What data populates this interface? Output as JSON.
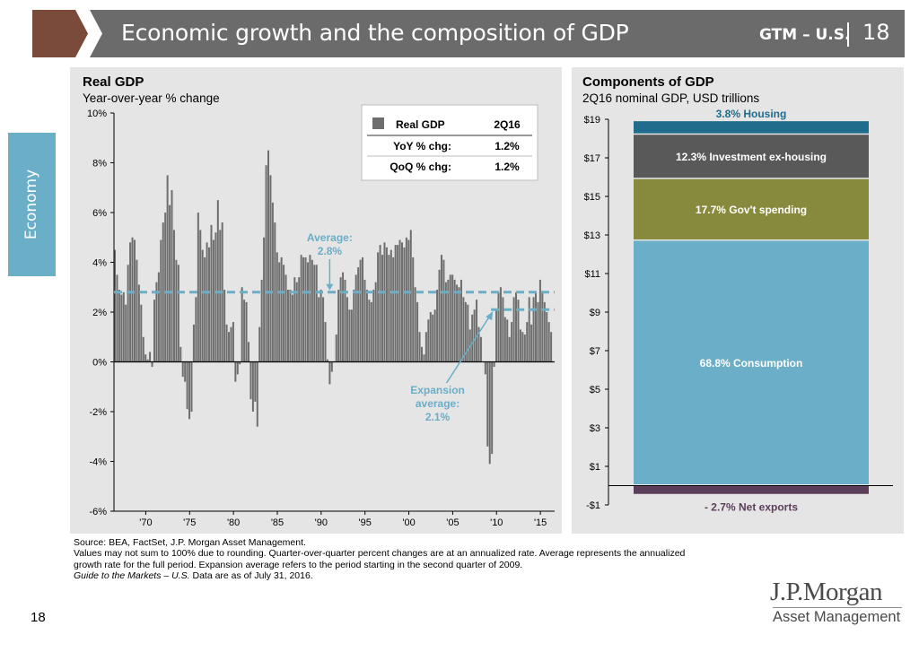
{
  "header": {
    "title": "Economic growth and the composition of GDP",
    "section": "GTM – U.S.",
    "page": "18"
  },
  "side_tab": {
    "label": "Economy"
  },
  "left_panel": {
    "title": "Real GDP",
    "subtitle": "Year-over-year % change"
  },
  "right_panel": {
    "title": "Components of GDP",
    "subtitle": "2Q16 nominal GDP, USD trillions"
  },
  "footer": {
    "source": "Source: BEA, FactSet, J.P. Morgan Asset Management.",
    "note1": "Values may not sum to 100% due to rounding. Quarter-over-quarter percent changes are at an annualized rate. Average represents the annualized",
    "note2": "growth rate for the full period. Expansion average refers to the period starting in the second quarter of 2009.",
    "note3_italic": "Guide to the Markets – U.S.",
    "note3_rest": " Data are as of July 31, 2016."
  },
  "page_number": "18",
  "logo": {
    "name": "J.P.Morgan",
    "sub": "Asset Management"
  },
  "colors": {
    "banner": "#6b6b6b",
    "banner_accent": "#7a4a3a",
    "bar": "#6e6e6e",
    "average_line": "#6aaec8",
    "housing": "#1f6c8d",
    "investment": "#595959",
    "gov": "#878a3c",
    "consumption": "#6aaec8",
    "net_exports": "#5b3e5a"
  },
  "chart_data": [
    {
      "type": "bar",
      "title": "Real GDP",
      "subtitle": "Year-over-year % change",
      "x_start": 1966.5,
      "x_end": 2016.5,
      "xticks": [
        1970,
        1975,
        1980,
        1985,
        1990,
        1995,
        2000,
        2005,
        2010,
        2015
      ],
      "xtick_labels": [
        "'70",
        "'75",
        "'80",
        "'85",
        "'90",
        "'95",
        "'00",
        "'05",
        "'10",
        "'15"
      ],
      "ylim": [
        -6,
        10
      ],
      "yticks": [
        -6,
        -4,
        -2,
        0,
        2,
        4,
        6,
        8,
        10
      ],
      "ytick_labels": [
        "-6%",
        "-4%",
        "-2%",
        "0%",
        "2%",
        "4%",
        "6%",
        "8%",
        "10%"
      ],
      "grid": false,
      "series": [
        {
          "name": "Real GDP",
          "x": [
            1966.5,
            1966.75,
            1967.0,
            1967.25,
            1967.5,
            1967.75,
            1968.0,
            1968.25,
            1968.5,
            1968.75,
            1969.0,
            1969.25,
            1969.5,
            1969.75,
            1970.0,
            1970.25,
            1970.5,
            1970.75,
            1971.0,
            1971.25,
            1971.5,
            1971.75,
            1972.0,
            1972.25,
            1972.5,
            1972.75,
            1973.0,
            1973.25,
            1973.5,
            1973.75,
            1974.0,
            1974.25,
            1974.5,
            1974.75,
            1975.0,
            1975.25,
            1975.5,
            1975.75,
            1976.0,
            1976.25,
            1976.5,
            1976.75,
            1977.0,
            1977.25,
            1977.5,
            1977.75,
            1978.0,
            1978.25,
            1978.5,
            1978.75,
            1979.0,
            1979.25,
            1979.5,
            1979.75,
            1980.0,
            1980.25,
            1980.5,
            1980.75,
            1981.0,
            1981.25,
            1981.5,
            1981.75,
            1982.0,
            1982.25,
            1982.5,
            1982.75,
            1983.0,
            1983.25,
            1983.5,
            1983.75,
            1984.0,
            1984.25,
            1984.5,
            1984.75,
            1985.0,
            1985.25,
            1985.5,
            1985.75,
            1986.0,
            1986.25,
            1986.5,
            1986.75,
            1987.0,
            1987.25,
            1987.5,
            1987.75,
            1988.0,
            1988.25,
            1988.5,
            1988.75,
            1989.0,
            1989.25,
            1989.5,
            1989.75,
            1990.0,
            1990.25,
            1990.5,
            1990.75,
            1991.0,
            1991.25,
            1991.5,
            1991.75,
            1992.0,
            1992.25,
            1992.5,
            1992.75,
            1993.0,
            1993.25,
            1993.5,
            1993.75,
            1994.0,
            1994.25,
            1994.5,
            1994.75,
            1995.0,
            1995.25,
            1995.5,
            1995.75,
            1996.0,
            1996.25,
            1996.5,
            1996.75,
            1997.0,
            1997.25,
            1997.5,
            1997.75,
            1998.0,
            1998.25,
            1998.5,
            1998.75,
            1999.0,
            1999.25,
            1999.5,
            1999.75,
            2000.0,
            2000.25,
            2000.5,
            2000.75,
            2001.0,
            2001.25,
            2001.5,
            2001.75,
            2002.0,
            2002.25,
            2002.5,
            2002.75,
            2003.0,
            2003.25,
            2003.5,
            2003.75,
            2004.0,
            2004.25,
            2004.5,
            2004.75,
            2005.0,
            2005.25,
            2005.5,
            2005.75,
            2006.0,
            2006.25,
            2006.5,
            2006.75,
            2007.0,
            2007.25,
            2007.5,
            2007.75,
            2008.0,
            2008.25,
            2008.5,
            2008.75,
            2009.0,
            2009.25,
            2009.5,
            2009.75,
            2010.0,
            2010.25,
            2010.5,
            2010.75,
            2011.0,
            2011.25,
            2011.5,
            2011.75,
            2012.0,
            2012.25,
            2012.5,
            2012.75,
            2013.0,
            2013.25,
            2013.5,
            2013.75,
            2014.0,
            2014.25,
            2014.5,
            2014.75,
            2015.0,
            2015.25,
            2015.5,
            2015.75,
            2016.0,
            2016.25
          ],
          "values": [
            4.5,
            3.5,
            2.9,
            2.7,
            2.8,
            2.3,
            3.9,
            4.8,
            5.0,
            4.9,
            4.1,
            3.1,
            2.3,
            1.0,
            0.3,
            0.1,
            0.4,
            -0.2,
            2.5,
            3.2,
            3.6,
            4.9,
            5.6,
            6.0,
            7.5,
            6.3,
            6.9,
            5.3,
            4.1,
            3.9,
            0.6,
            -0.6,
            -0.8,
            -1.9,
            -2.3,
            -2.0,
            1.5,
            2.6,
            6.0,
            5.3,
            4.5,
            4.2,
            4.8,
            4.6,
            5.5,
            4.9,
            5.2,
            6.5,
            5.3,
            5.6,
            2.9,
            1.5,
            1.2,
            1.4,
            1.6,
            -0.8,
            -0.5,
            -0.1,
            3.0,
            2.5,
            2.4,
            0.8,
            -1.5,
            -2.0,
            -1.6,
            -2.6,
            1.4,
            3.3,
            5.0,
            7.9,
            8.5,
            7.5,
            6.4,
            5.6,
            4.4,
            4.0,
            4.2,
            3.9,
            3.5,
            2.9,
            2.9,
            2.7,
            3.4,
            3.2,
            3.4,
            4.3,
            4.2,
            4.2,
            4.0,
            4.3,
            4.1,
            3.9,
            3.9,
            2.6,
            2.9,
            2.6,
            1.6,
            0.1,
            -0.9,
            -0.4,
            0.0,
            1.1,
            2.9,
            3.4,
            3.6,
            3.3,
            2.6,
            2.1,
            2.1,
            2.9,
            3.5,
            3.8,
            4.1,
            4.2,
            3.3,
            2.9,
            2.5,
            2.4,
            2.9,
            3.2,
            4.4,
            4.7,
            4.3,
            4.8,
            4.6,
            4.3,
            4.5,
            4.2,
            4.7,
            4.7,
            4.9,
            4.8,
            4.6,
            5.0,
            4.9,
            5.3,
            4.2,
            3.0,
            2.4,
            1.2,
            0.6,
            0.3,
            1.2,
            1.7,
            2.0,
            1.9,
            2.1,
            2.9,
            3.7,
            4.3,
            4.1,
            3.2,
            3.3,
            3.5,
            3.5,
            3.3,
            3.1,
            3.0,
            3.3,
            2.6,
            2.4,
            2.3,
            1.3,
            1.9,
            2.1,
            2.5,
            1.4,
            1.0,
            0.0,
            -0.5,
            -3.4,
            -4.1,
            -3.7,
            -0.2,
            2.1,
            2.8,
            3.0,
            2.6,
            1.8,
            1.7,
            1.0,
            1.6,
            2.6,
            2.8,
            2.5,
            1.3,
            1.2,
            1.1,
            1.6,
            2.6,
            1.5,
            2.6,
            2.8,
            2.4,
            3.3,
            2.8,
            2.4,
            2.0,
            1.6,
            1.2
          ]
        }
      ],
      "reference_lines": [
        {
          "label_line1": "Average:",
          "label_line2": "2.8%",
          "value": 2.8,
          "x_from": 1966.5,
          "x_to": 2016.5
        },
        {
          "label_line1": "Expansion",
          "label_line2": "average:",
          "label_line3": "2.1%",
          "value": 2.1,
          "x_from": 2009.5,
          "x_to": 2016.5
        }
      ],
      "legend_box": {
        "header_label": "Real GDP",
        "header_period": "2Q16",
        "rows": [
          {
            "label": "YoY % chg:",
            "value": "1.2%"
          },
          {
            "label": "QoQ % chg:",
            "value": "1.2%"
          }
        ],
        "placement": "top-right"
      }
    },
    {
      "type": "bar",
      "stacked": true,
      "title": "Components of GDP",
      "subtitle": "2Q16 nominal GDP, USD trillions",
      "ylim": [
        -1,
        19
      ],
      "yticks": [
        -1,
        1,
        3,
        5,
        7,
        9,
        11,
        13,
        15,
        17,
        19
      ],
      "ytick_labels": [
        "-$1",
        "$1",
        "$3",
        "$5",
        "$7",
        "$9",
        "$11",
        "$13",
        "$15",
        "$17",
        "$19"
      ],
      "segments": [
        {
          "label": "- 2.7%  Net exports",
          "value": -0.5,
          "color": "#5b3e5a",
          "label_position": "below"
        },
        {
          "label": "68.8% Consumption",
          "value": 12.7,
          "color": "#6aaec8",
          "label_position": "inside"
        },
        {
          "label": "17.7% Gov't spending",
          "value": 3.2,
          "color": "#878a3c",
          "label_position": "inside"
        },
        {
          "label": "12.3% Investment ex-housing",
          "value": 2.3,
          "color": "#595959",
          "label_position": "inside"
        },
        {
          "label": "3.8% Housing",
          "value": 0.7,
          "color": "#1f6c8d",
          "label_position": "above"
        }
      ]
    }
  ]
}
